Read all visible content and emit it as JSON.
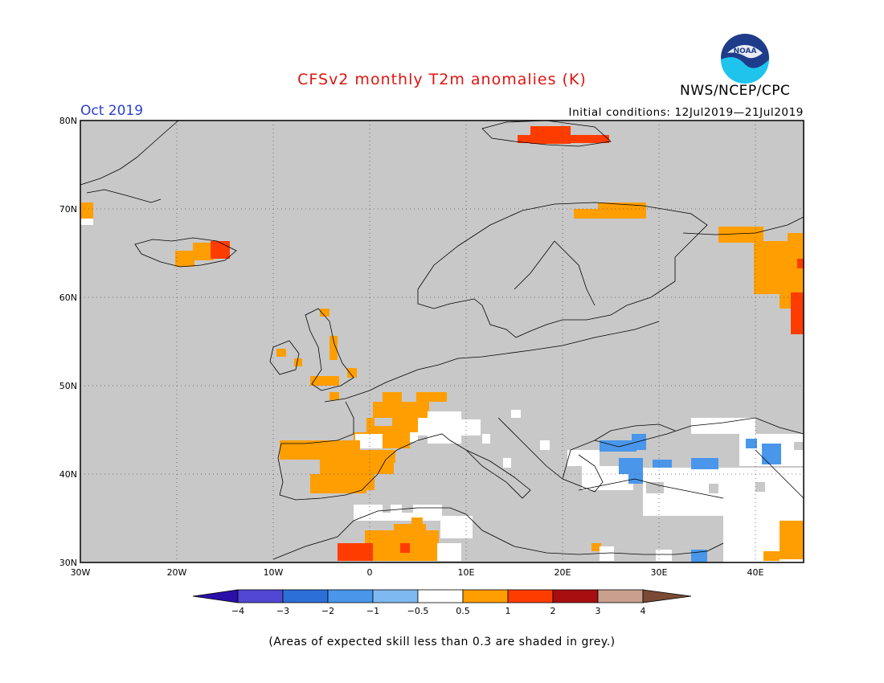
{
  "title": "CFSv2 monthly T2m anomalies (K)",
  "month": "Oct 2019",
  "initial_conditions": "Initial conditions: 12Jul2019—21Jul2019",
  "agency": "NWS/NCEP/CPC",
  "logo_text": "NOAA",
  "footnote": "(Areas of expected skill less than 0.3 are shaded in grey.)",
  "colors": {
    "title": "#e0140f",
    "month": "#2a3fd6",
    "no_skill": "#c8c8c8",
    "land_line": "#000000"
  },
  "map": {
    "lon_range": [
      -30,
      45
    ],
    "lat_range": [
      30,
      80
    ],
    "lon_ticks": [
      "30W",
      "20W",
      "10W",
      "0",
      "10E",
      "20E",
      "30E",
      "40E"
    ],
    "lat_ticks": [
      "30N",
      "40N",
      "50N",
      "60N",
      "70N",
      "80N"
    ]
  },
  "colorbar": {
    "labels": [
      "−4",
      "−3",
      "−2",
      "−1",
      "−0.5",
      "0.5",
      "1",
      "2",
      "3",
      "4"
    ],
    "colors": [
      "#2a10a8",
      "#5246d4",
      "#2c6fd8",
      "#4a96ea",
      "#7fb9f2",
      "#ffffff",
      "#ff9e00",
      "#ff3c00",
      "#a80e10",
      "#c9a08e",
      "#7a4a34"
    ]
  }
}
